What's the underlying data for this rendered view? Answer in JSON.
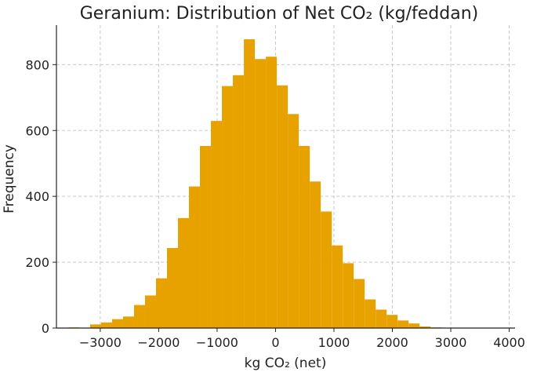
{
  "chart_data": {
    "type": "bar",
    "title": "Geranium: Distribution of Net CO₂ (kg/feddan)",
    "xlabel": "kg CO₂ (net)",
    "ylabel": "Frequency",
    "xlim": [
      -3750,
      4100
    ],
    "ylim": [
      0,
      920
    ],
    "xticks": [
      -3000,
      -2000,
      -1000,
      0,
      1000,
      2000,
      3000,
      4000
    ],
    "xtick_labels": [
      "−3000",
      "−2000",
      "−1000",
      "0",
      "1000",
      "2000",
      "3000",
      "4000"
    ],
    "yticks": [
      0,
      200,
      400,
      600,
      800
    ],
    "ytick_labels": [
      "0",
      "200",
      "400",
      "600",
      "800"
    ],
    "grid": true,
    "bar_color": "#E8A200",
    "bins": {
      "start": -3550,
      "width": 188,
      "counts": [
        2,
        1,
        11,
        17,
        27,
        35,
        70,
        99,
        151,
        243,
        334,
        430,
        553,
        629,
        735,
        768,
        877,
        817,
        824,
        737,
        650,
        553,
        445,
        354,
        251,
        197,
        149,
        87,
        56,
        40,
        23,
        14,
        5,
        2,
        1,
        0,
        0,
        0,
        0,
        1
      ]
    }
  }
}
